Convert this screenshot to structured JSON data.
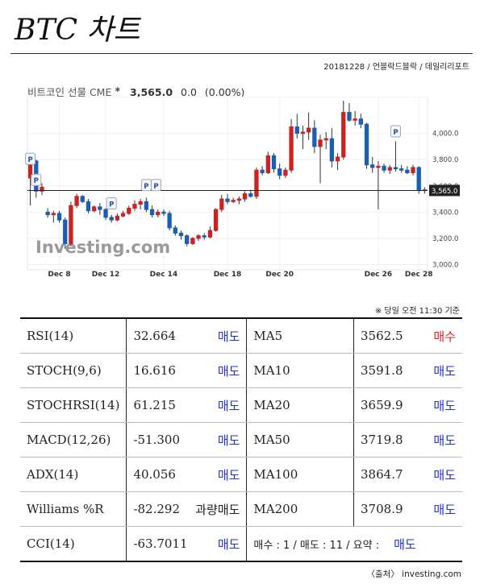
{
  "title": "BTC 차트",
  "byline": "20181228 / 언블락드블락 / 데일리리포트",
  "chart_header": {
    "name": "비트코인 선물 CME",
    "price": "3,565.0",
    "change": "0.0",
    "change_pct": "(0.00%)"
  },
  "note": "※ 당일 오전 11:30 기준",
  "source": "〈출처〉 investing.com",
  "colors": {
    "up": "#cc2222",
    "down": "#1a5fb4",
    "sell": "#2233cc",
    "buy": "#dd2222"
  },
  "chart_data": {
    "type": "candlestick",
    "watermark": "Investing.com",
    "ylim": [
      2960,
      4280
    ],
    "yticks": [
      "4,000.0",
      "3,800.0",
      "3,600.0",
      "3,400.0",
      "3,200.0",
      "3,000.0"
    ],
    "ytick_values": [
      4000,
      3800,
      3600,
      3400,
      3200,
      3000
    ],
    "current_price": 3565,
    "current_price_label": "3,565.0",
    "xticks": [
      {
        "label": "Dec 8",
        "index": 5
      },
      {
        "label": "Dec 12",
        "index": 13
      },
      {
        "label": "Dec 14",
        "index": 23
      },
      {
        "label": "Dec 18",
        "index": 34
      },
      {
        "label": "Dec 20",
        "index": 43
      },
      {
        "label": "Dec 26",
        "index": 60
      },
      {
        "label": "Dec 28",
        "index": 67
      }
    ],
    "markers": [
      {
        "label": "P",
        "index": 0,
        "price": 3800
      },
      {
        "label": "P",
        "index": 1,
        "price": 3640
      },
      {
        "label": "P",
        "index": 14,
        "price": 3460
      },
      {
        "label": "P",
        "index": 20,
        "price": 3600
      },
      {
        "label": "P",
        "index": 21,
        "price": 3600
      },
      {
        "label": "P",
        "index": 63,
        "price": 4010
      }
    ],
    "candles": [
      {
        "o": 3660,
        "h": 3830,
        "l": 3450,
        "c": 3790
      },
      {
        "o": 3790,
        "h": 3800,
        "l": 3510,
        "c": 3560
      },
      {
        "o": 3560,
        "h": 3620,
        "l": 3530,
        "c": 3590
      },
      {
        "o": 3400,
        "h": 3430,
        "l": 3360,
        "c": 3380
      },
      {
        "o": 3380,
        "h": 3410,
        "l": 3320,
        "c": 3390
      },
      {
        "o": 3390,
        "h": 3410,
        "l": 3320,
        "c": 3340
      },
      {
        "o": 3340,
        "h": 3360,
        "l": 3120,
        "c": 3160
      },
      {
        "o": 3160,
        "h": 3480,
        "l": 3140,
        "c": 3450
      },
      {
        "o": 3450,
        "h": 3540,
        "l": 3430,
        "c": 3520
      },
      {
        "o": 3520,
        "h": 3530,
        "l": 3470,
        "c": 3480
      },
      {
        "o": 3480,
        "h": 3500,
        "l": 3390,
        "c": 3410
      },
      {
        "o": 3410,
        "h": 3450,
        "l": 3400,
        "c": 3440
      },
      {
        "o": 3440,
        "h": 3470,
        "l": 3380,
        "c": 3420
      },
      {
        "o": 3420,
        "h": 3430,
        "l": 3340,
        "c": 3360
      },
      {
        "o": 3360,
        "h": 3380,
        "l": 3320,
        "c": 3340
      },
      {
        "o": 3340,
        "h": 3390,
        "l": 3330,
        "c": 3370
      },
      {
        "o": 3370,
        "h": 3410,
        "l": 3360,
        "c": 3390
      },
      {
        "o": 3390,
        "h": 3450,
        "l": 3380,
        "c": 3430
      },
      {
        "o": 3430,
        "h": 3490,
        "l": 3410,
        "c": 3460
      },
      {
        "o": 3460,
        "h": 3500,
        "l": 3420,
        "c": 3480
      },
      {
        "o": 3480,
        "h": 3510,
        "l": 3400,
        "c": 3420
      },
      {
        "o": 3420,
        "h": 3450,
        "l": 3360,
        "c": 3380
      },
      {
        "o": 3380,
        "h": 3420,
        "l": 3360,
        "c": 3400
      },
      {
        "o": 3400,
        "h": 3420,
        "l": 3370,
        "c": 3390
      },
      {
        "o": 3390,
        "h": 3410,
        "l": 3260,
        "c": 3280
      },
      {
        "o": 3280,
        "h": 3300,
        "l": 3220,
        "c": 3240
      },
      {
        "o": 3240,
        "h": 3260,
        "l": 3190,
        "c": 3220
      },
      {
        "o": 3220,
        "h": 3230,
        "l": 3140,
        "c": 3160
      },
      {
        "o": 3160,
        "h": 3210,
        "l": 3150,
        "c": 3200
      },
      {
        "o": 3200,
        "h": 3230,
        "l": 3180,
        "c": 3220
      },
      {
        "o": 3220,
        "h": 3240,
        "l": 3190,
        "c": 3210
      },
      {
        "o": 3210,
        "h": 3290,
        "l": 3200,
        "c": 3260
      },
      {
        "o": 3260,
        "h": 3430,
        "l": 3250,
        "c": 3420
      },
      {
        "o": 3420,
        "h": 3530,
        "l": 3400,
        "c": 3500
      },
      {
        "o": 3500,
        "h": 3540,
        "l": 3460,
        "c": 3480
      },
      {
        "o": 3480,
        "h": 3510,
        "l": 3470,
        "c": 3490
      },
      {
        "o": 3490,
        "h": 3520,
        "l": 3460,
        "c": 3500
      },
      {
        "o": 3500,
        "h": 3560,
        "l": 3480,
        "c": 3540
      },
      {
        "o": 3540,
        "h": 3570,
        "l": 3510,
        "c": 3520
      },
      {
        "o": 3520,
        "h": 3740,
        "l": 3500,
        "c": 3720
      },
      {
        "o": 3720,
        "h": 3750,
        "l": 3680,
        "c": 3700
      },
      {
        "o": 3700,
        "h": 3860,
        "l": 3690,
        "c": 3830
      },
      {
        "o": 3830,
        "h": 3850,
        "l": 3700,
        "c": 3730
      },
      {
        "o": 3730,
        "h": 3770,
        "l": 3650,
        "c": 3680
      },
      {
        "o": 3680,
        "h": 3740,
        "l": 3660,
        "c": 3720
      },
      {
        "o": 3720,
        "h": 4110,
        "l": 3700,
        "c": 4050
      },
      {
        "o": 4050,
        "h": 4150,
        "l": 3960,
        "c": 4000
      },
      {
        "o": 4000,
        "h": 4060,
        "l": 3880,
        "c": 4010
      },
      {
        "o": 4010,
        "h": 4160,
        "l": 3950,
        "c": 4040
      },
      {
        "o": 4040,
        "h": 4100,
        "l": 3850,
        "c": 3900
      },
      {
        "o": 3900,
        "h": 3990,
        "l": 3620,
        "c": 3950
      },
      {
        "o": 3950,
        "h": 4010,
        "l": 3880,
        "c": 3960
      },
      {
        "o": 3960,
        "h": 4040,
        "l": 3740,
        "c": 3790
      },
      {
        "o": 3790,
        "h": 3850,
        "l": 3720,
        "c": 3820
      },
      {
        "o": 3820,
        "h": 4250,
        "l": 3800,
        "c": 4160
      },
      {
        "o": 4160,
        "h": 4230,
        "l": 4090,
        "c": 4100
      },
      {
        "o": 4100,
        "h": 4170,
        "l": 4060,
        "c": 4110
      },
      {
        "o": 4110,
        "h": 4150,
        "l": 4040,
        "c": 4070
      },
      {
        "o": 4070,
        "h": 4080,
        "l": 3730,
        "c": 3760
      },
      {
        "o": 3760,
        "h": 3820,
        "l": 3700,
        "c": 3740
      },
      {
        "o": 3740,
        "h": 3790,
        "l": 3420,
        "c": 3750
      },
      {
        "o": 3750,
        "h": 3770,
        "l": 3700,
        "c": 3720
      },
      {
        "o": 3720,
        "h": 3760,
        "l": 3690,
        "c": 3740
      },
      {
        "o": 3740,
        "h": 3940,
        "l": 3710,
        "c": 3730
      },
      {
        "o": 3730,
        "h": 3760,
        "l": 3700,
        "c": 3720
      },
      {
        "o": 3720,
        "h": 3750,
        "l": 3690,
        "c": 3700
      },
      {
        "o": 3700,
        "h": 3760,
        "l": 3680,
        "c": 3740
      },
      {
        "o": 3740,
        "h": 3750,
        "l": 3540,
        "c": 3570
      },
      {
        "o": 3570,
        "h": 3590,
        "l": 3540,
        "c": 3565
      }
    ]
  },
  "table": {
    "rows": [
      {
        "ind1": "RSI(14)",
        "val1": "32.664",
        "sig1": "매도",
        "sig1_type": "sell",
        "ind2": "MA5",
        "val2": "3562.5",
        "sig2": "매수",
        "sig2_type": "buy"
      },
      {
        "ind1": "STOCH(9,6)",
        "val1": "16.616",
        "sig1": "매도",
        "sig1_type": "sell",
        "ind2": "MA10",
        "val2": "3591.8",
        "sig2": "매도",
        "sig2_type": "sell"
      },
      {
        "ind1": "STOCHRSI(14)",
        "val1": "61.215",
        "sig1": "매도",
        "sig1_type": "sell",
        "ind2": "MA20",
        "val2": "3659.9",
        "sig2": "매도",
        "sig2_type": "sell"
      },
      {
        "ind1": "MACD(12,26)",
        "val1": "-51.300",
        "sig1": "매도",
        "sig1_type": "sell",
        "ind2": "MA50",
        "val2": "3719.8",
        "sig2": "매도",
        "sig2_type": "sell"
      },
      {
        "ind1": "ADX(14)",
        "val1": "40.056",
        "sig1": "매도",
        "sig1_type": "sell",
        "ind2": "MA100",
        "val2": "3864.7",
        "sig2": "매도",
        "sig2_type": "sell"
      },
      {
        "ind1": "Williams %R",
        "val1": "-82.292",
        "sig1": "과량매도",
        "sig1_type": "over",
        "ind2": "MA200",
        "val2": "3708.9",
        "sig2": "매도",
        "sig2_type": "sell"
      }
    ],
    "last_row": {
      "ind1": "CCI(14)",
      "val1": "-63.7011",
      "sig1": "매도",
      "summary_text": "매수 : 1 / 매도 : 11 / 요약 :",
      "summary_signal": "매도"
    }
  }
}
